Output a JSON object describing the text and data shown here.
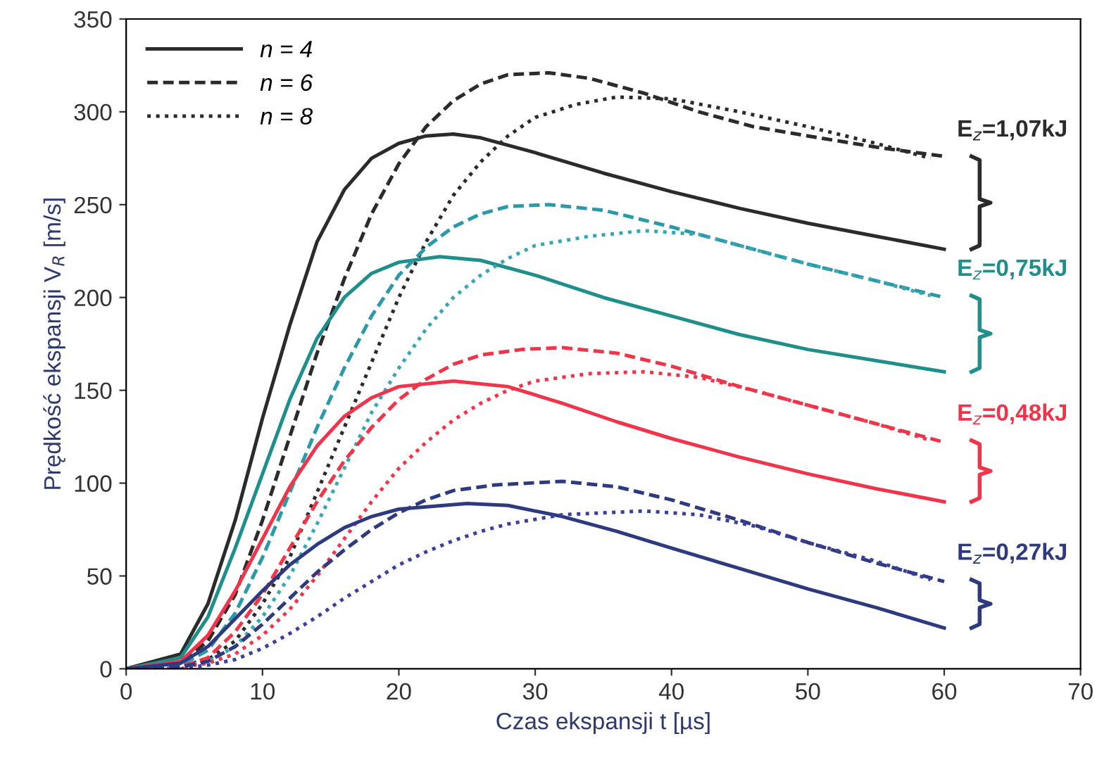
{
  "chart_data": {
    "type": "line",
    "xlabel": "Czas ekspansji t [µs]",
    "ylabel": "Prędkość ekspansji V$_{R}$ [m/s]",
    "xlim": [
      0,
      70
    ],
    "ylim": [
      0,
      350
    ],
    "xticks": [
      0,
      10,
      20,
      30,
      40,
      50,
      60,
      70
    ],
    "yticks": [
      0,
      50,
      100,
      150,
      200,
      250,
      300,
      350
    ],
    "grid": false,
    "legend": "top left",
    "marker": "none",
    "series": [
      {
        "name": "n = 4",
        "color": "#2b2b2b",
        "line_style": "solid",
        "x": [
          0,
          4,
          6,
          8,
          10,
          12,
          14,
          16,
          18,
          20,
          22,
          24,
          26,
          30,
          35,
          40,
          45,
          50,
          55,
          60
        ],
        "values": [
          0,
          8,
          35,
          80,
          135,
          185,
          230,
          258,
          275,
          283,
          287,
          288,
          286,
          278,
          267,
          257,
          248,
          240,
          233,
          226
        ]
      },
      {
        "name": "n = 6",
        "color": "#2b2b2b",
        "line_style": "dashed",
        "x": [
          2,
          4,
          6,
          8,
          10,
          12,
          14,
          16,
          18,
          20,
          22,
          24,
          26,
          28,
          31,
          34,
          38,
          42,
          46,
          50,
          55,
          60
        ],
        "values": [
          0,
          3,
          15,
          40,
          80,
          125,
          170,
          210,
          245,
          272,
          292,
          306,
          315,
          320,
          321,
          318,
          310,
          300,
          292,
          287,
          281,
          276
        ]
      },
      {
        "name": "n = 8",
        "color": "#2b2b2b",
        "line_style": "dotted",
        "x": [
          3,
          6,
          8,
          10,
          12,
          14,
          16,
          18,
          20,
          22,
          24,
          26,
          28,
          30,
          33,
          36,
          40,
          45,
          50,
          55,
          59
        ],
        "values": [
          0,
          5,
          15,
          35,
          60,
          95,
          130,
          165,
          200,
          230,
          255,
          273,
          287,
          297,
          304,
          308,
          307,
          300,
          292,
          283,
          275
        ]
      },
      {
        "color": "#1e8f8a",
        "line_style": "solid",
        "x": [
          0,
          4,
          6,
          8,
          10,
          12,
          14,
          16,
          18,
          20,
          23,
          26,
          30,
          35,
          40,
          45,
          50,
          55,
          60
        ],
        "values": [
          0,
          6,
          28,
          65,
          105,
          145,
          178,
          200,
          213,
          219,
          222,
          220,
          212,
          200,
          190,
          180,
          172,
          166,
          160
        ]
      },
      {
        "color": "#2a9aa8",
        "line_style": "dashed",
        "x": [
          2,
          4,
          6,
          8,
          10,
          12,
          14,
          16,
          18,
          20,
          22,
          24,
          26,
          28,
          31,
          35,
          40,
          45,
          50,
          55,
          60
        ],
        "values": [
          0,
          2,
          10,
          30,
          60,
          95,
          130,
          162,
          190,
          212,
          227,
          238,
          245,
          249,
          250,
          247,
          238,
          228,
          218,
          209,
          200
        ]
      },
      {
        "color": "#3aa6b5",
        "line_style": "dotted",
        "x": [
          3,
          6,
          8,
          10,
          12,
          14,
          16,
          18,
          20,
          22,
          24,
          26,
          28,
          30,
          34,
          38,
          42,
          46,
          50,
          55,
          59
        ],
        "values": [
          0,
          4,
          12,
          28,
          50,
          78,
          108,
          138,
          162,
          183,
          200,
          212,
          221,
          228,
          233,
          236,
          234,
          226,
          218,
          209,
          201
        ]
      },
      {
        "color": "#f0344a",
        "line_style": "solid",
        "x": [
          0,
          4,
          6,
          8,
          10,
          12,
          14,
          16,
          18,
          20,
          24,
          28,
          32,
          36,
          40,
          45,
          50,
          55,
          60
        ],
        "values": [
          0,
          4,
          18,
          42,
          70,
          98,
          120,
          136,
          146,
          152,
          155,
          152,
          143,
          133,
          124,
          114,
          105,
          97,
          90
        ]
      },
      {
        "color": "#f0344a",
        "line_style": "dashed",
        "x": [
          2,
          4,
          6,
          8,
          10,
          12,
          14,
          16,
          18,
          20,
          22,
          24,
          26,
          29,
          32,
          36,
          40,
          45,
          50,
          55,
          60
        ],
        "values": [
          0,
          1,
          6,
          20,
          40,
          65,
          90,
          112,
          130,
          145,
          156,
          164,
          169,
          172,
          173,
          170,
          163,
          152,
          142,
          132,
          122
        ]
      },
      {
        "color": "#f0344a",
        "line_style": "dotted",
        "x": [
          3,
          6,
          8,
          10,
          12,
          14,
          16,
          18,
          20,
          22,
          24,
          26,
          28,
          30,
          34,
          38,
          42,
          46,
          50,
          55,
          59
        ],
        "values": [
          0,
          3,
          8,
          18,
          32,
          50,
          70,
          90,
          108,
          122,
          134,
          143,
          150,
          155,
          159,
          160,
          157,
          150,
          142,
          132,
          123
        ]
      },
      {
        "color": "#2e3a80",
        "line_style": "solid",
        "x": [
          0,
          4,
          6,
          8,
          10,
          12,
          14,
          16,
          18,
          20,
          25,
          28,
          32,
          36,
          40,
          45,
          50,
          55,
          60
        ],
        "values": [
          0,
          3,
          12,
          27,
          42,
          56,
          67,
          76,
          82,
          86,
          89,
          88,
          82,
          74,
          65,
          54,
          43,
          33,
          22
        ]
      },
      {
        "color": "#2e3a80",
        "line_style": "dashed",
        "x": [
          2,
          4,
          6,
          8,
          10,
          12,
          14,
          16,
          18,
          20,
          22,
          24,
          27,
          32,
          36,
          40,
          45,
          50,
          55,
          60
        ],
        "values": [
          0,
          1,
          4,
          12,
          24,
          38,
          52,
          64,
          75,
          84,
          91,
          96,
          99,
          101,
          98,
          91,
          80,
          68,
          57,
          47
        ]
      },
      {
        "color": "#3a3f9e",
        "line_style": "dotted",
        "x": [
          4,
          6,
          8,
          10,
          12,
          14,
          16,
          18,
          20,
          22,
          24,
          26,
          28,
          32,
          38,
          42,
          46,
          50,
          55,
          59
        ],
        "values": [
          0,
          2,
          5,
          11,
          19,
          28,
          38,
          47,
          56,
          63,
          69,
          74,
          78,
          83,
          85,
          83,
          77,
          68,
          58,
          48
        ]
      }
    ],
    "annotations": [
      "E$_{z}$=1,07kJ",
      "E$_{z}$=0,75kJ",
      "E$_{z}$=0,48kJ",
      "E$_{z}$=0,27kJ"
    ]
  }
}
